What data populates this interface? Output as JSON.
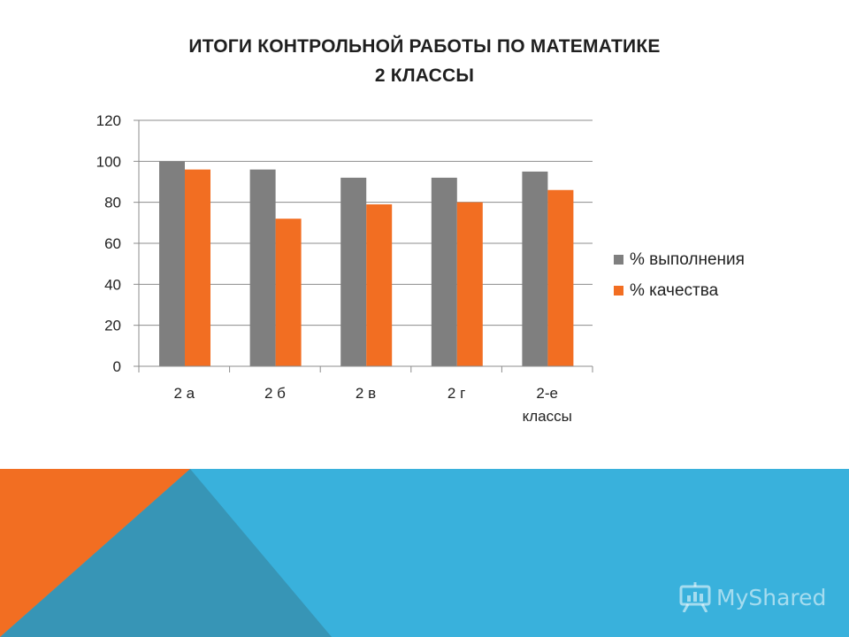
{
  "slide": {
    "title_line1": "ИТОГИ КОНТРОЛЬНОЙ РАБОТЫ ПО МАТЕМАТИКЕ",
    "title_line2": "2 КЛАССЫ"
  },
  "chart_data": {
    "type": "bar",
    "title": "ИТОГИ КОНТРОЛЬНОЙ РАБОТЫ ПО МАТЕМАТИКЕ 2 КЛАССЫ",
    "categories": [
      "2 а",
      "2 б",
      "2 в",
      "2 г",
      "2-е классы"
    ],
    "category_lines": [
      [
        "2 а"
      ],
      [
        "2 б"
      ],
      [
        "2 в"
      ],
      [
        "2 г"
      ],
      [
        "2-е",
        "классы"
      ]
    ],
    "series": [
      {
        "name": "% выполнения",
        "values": [
          100,
          96,
          92,
          92,
          95
        ],
        "color": "#7f7f7f"
      },
      {
        "name": "% качества",
        "values": [
          96,
          72,
          79,
          80,
          86
        ],
        "color": "#f26e22"
      }
    ],
    "ylim": [
      0,
      120
    ],
    "yticks": [
      0,
      20,
      40,
      60,
      80,
      100,
      120
    ],
    "grid": true,
    "legend_position": "right",
    "xlabel": "",
    "ylabel": ""
  },
  "footer": {
    "blue": "#39b1dc",
    "orange": "#f26e22",
    "dark": "#3795b6"
  },
  "watermark": {
    "text": "MyShared",
    "icon": "presentation-board-icon"
  }
}
